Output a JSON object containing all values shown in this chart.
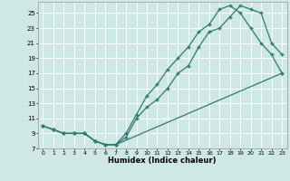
{
  "xlabel": "Humidex (Indice chaleur)",
  "bg_color": "#cde8e5",
  "grid_color": "#ffffff",
  "line_color": "#2d7c6e",
  "xlim": [
    -0.5,
    23.5
  ],
  "ylim": [
    7,
    26.5
  ],
  "yticks": [
    7,
    9,
    11,
    13,
    15,
    17,
    19,
    21,
    23,
    25
  ],
  "xticks": [
    0,
    1,
    2,
    3,
    4,
    5,
    6,
    7,
    8,
    9,
    10,
    11,
    12,
    13,
    14,
    15,
    16,
    17,
    18,
    19,
    20,
    21,
    22,
    23
  ],
  "line1_x": [
    0,
    1,
    2,
    3,
    4,
    5,
    6,
    7,
    8,
    9,
    10,
    11,
    12,
    13,
    14,
    15,
    16,
    17,
    18,
    19,
    20,
    21,
    22,
    23
  ],
  "line1_y": [
    10.0,
    9.5,
    9.0,
    9.0,
    9.0,
    8.0,
    7.5,
    7.5,
    8.5,
    11.0,
    12.5,
    13.5,
    15.0,
    17.0,
    18.0,
    20.5,
    22.5,
    23.0,
    24.5,
    26.0,
    25.5,
    25.0,
    21.0,
    19.5
  ],
  "line2_x": [
    0,
    1,
    2,
    3,
    4,
    5,
    6,
    7,
    8,
    9,
    10,
    11,
    12,
    13,
    14,
    15,
    16,
    17,
    18,
    19,
    20,
    21,
    22,
    23
  ],
  "line2_y": [
    10.0,
    9.5,
    9.0,
    9.0,
    9.0,
    8.0,
    7.5,
    7.5,
    9.0,
    11.5,
    14.0,
    15.5,
    17.5,
    19.0,
    20.5,
    22.5,
    23.5,
    25.5,
    26.0,
    25.0,
    23.0,
    21.0,
    19.5,
    17.0
  ],
  "line3_x": [
    0,
    1,
    2,
    3,
    4,
    5,
    6,
    7,
    23
  ],
  "line3_y": [
    10.0,
    9.5,
    9.0,
    9.0,
    9.0,
    8.0,
    7.5,
    7.5,
    17.0
  ]
}
